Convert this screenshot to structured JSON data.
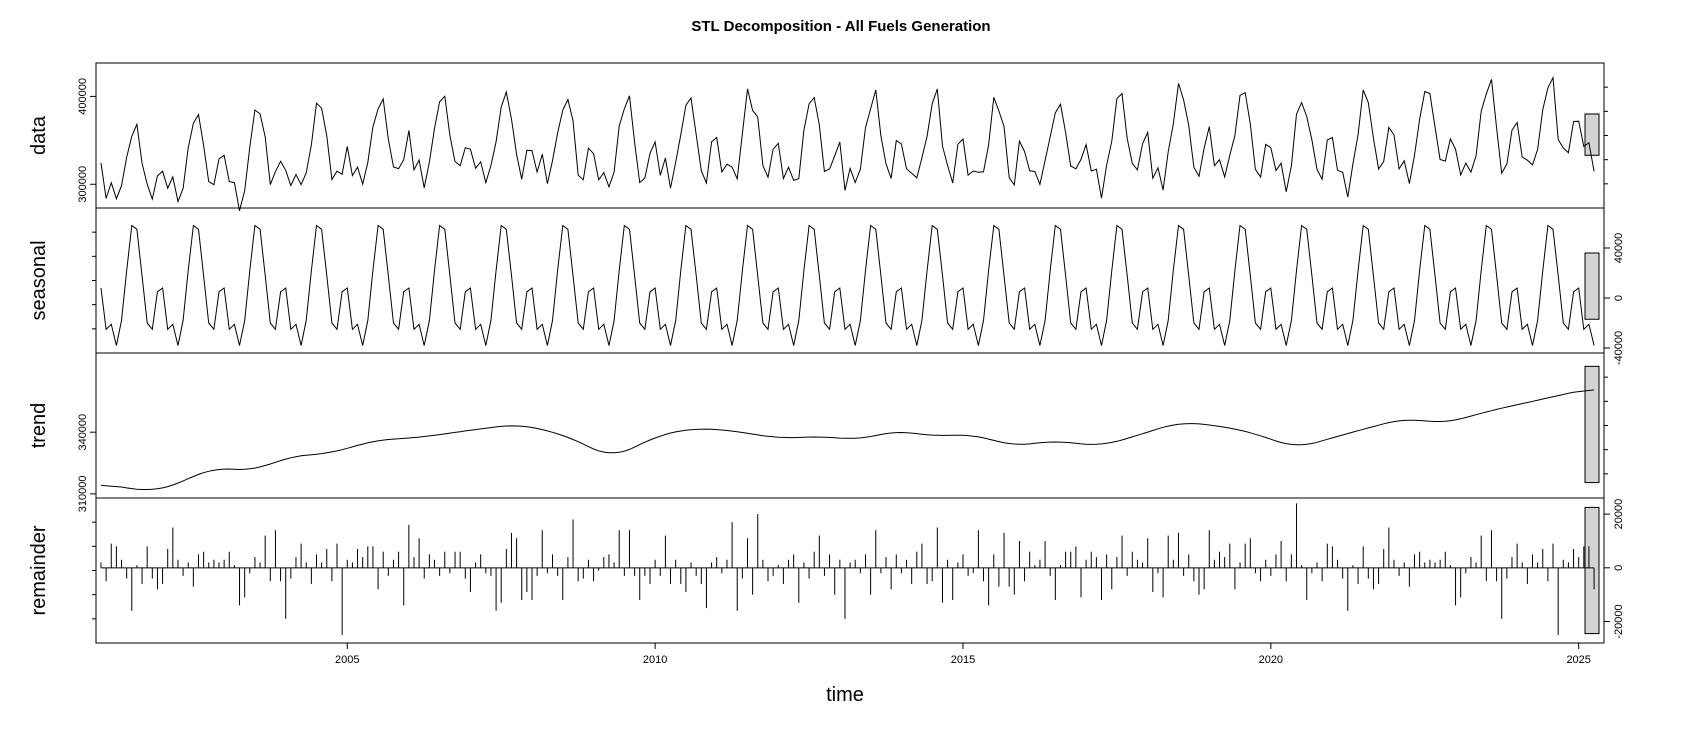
{
  "chart_data": {
    "type": "line",
    "title": "STL Decomposition - All Fuels Generation",
    "xlabel": "time",
    "x_ticks": [
      2005,
      2010,
      2015,
      2020,
      2025
    ],
    "x_range": [
      2001,
      2025.33
    ],
    "panels": [
      {
        "name": "data",
        "ylabel": "data",
        "y_ticks": [
          300000,
          400000
        ],
        "y_tick_labels": [
          "300000",
          "400000"
        ],
        "axis_side": "left",
        "ylim": [
          273000,
          438000
        ],
        "scale_bar": [
          333000,
          380000
        ]
      },
      {
        "name": "seasonal",
        "ylabel": "seasonal",
        "y_ticks": [
          -40000,
          0,
          40000
        ],
        "y_tick_labels": [
          "-40000",
          "0",
          "40000"
        ],
        "axis_side": "right",
        "ylim": [
          -44000,
          72000
        ],
        "scale_bar": [
          -17000,
          36000
        ]
      },
      {
        "name": "trend",
        "ylabel": "trend",
        "y_ticks": [
          310000,
          340000
        ],
        "y_tick_labels": [
          "310000",
          "340000"
        ],
        "axis_side": "left",
        "ylim": [
          308000,
          378500
        ],
        "scale_bar": [
          315500,
          372000
        ]
      },
      {
        "name": "remainder",
        "ylabel": "remainder",
        "y_ticks": [
          -20000,
          0,
          20000
        ],
        "y_tick_labels": [
          "-20000",
          "0",
          "20000"
        ],
        "axis_side": "right",
        "ylim": [
          -28000,
          26000
        ],
        "scale_bar": [
          -24500,
          22500
        ]
      }
    ],
    "seasonal_pattern": [
      8000,
      -25000,
      -21000,
      -38000,
      -18000,
      22000,
      58000,
      55000,
      18000,
      -20000,
      -25000,
      5000
    ],
    "trend_knots": [
      [
        2001.0,
        315000
      ],
      [
        2001.8,
        311000
      ],
      [
        2002.2,
        314000
      ],
      [
        2002.8,
        323000
      ],
      [
        2003.5,
        321000
      ],
      [
        2004.0,
        328000
      ],
      [
        2004.8,
        330000
      ],
      [
        2005.4,
        336000
      ],
      [
        2006.2,
        337500
      ],
      [
        2007.0,
        341000
      ],
      [
        2007.8,
        344000
      ],
      [
        2008.6,
        338000
      ],
      [
        2009.3,
        327000
      ],
      [
        2010.0,
        338000
      ],
      [
        2010.6,
        342000
      ],
      [
        2011.2,
        341000
      ],
      [
        2012.0,
        337000
      ],
      [
        2012.8,
        338000
      ],
      [
        2013.3,
        336000
      ],
      [
        2013.9,
        341000
      ],
      [
        2014.5,
        338000
      ],
      [
        2015.2,
        339000
      ],
      [
        2015.8,
        333000
      ],
      [
        2016.5,
        336000
      ],
      [
        2017.2,
        333000
      ],
      [
        2017.8,
        338000
      ],
      [
        2018.5,
        345000
      ],
      [
        2019.2,
        343000
      ],
      [
        2019.8,
        339000
      ],
      [
        2020.4,
        332000
      ],
      [
        2021.2,
        339000
      ],
      [
        2022.2,
        347000
      ],
      [
        2022.8,
        344000
      ],
      [
        2023.5,
        350000
      ],
      [
        2024.4,
        356000
      ],
      [
        2025.3,
        362000
      ]
    ],
    "remainder_values": [
      2000,
      -5000,
      9000,
      8000,
      3000,
      -4000,
      -16000,
      1000,
      -6000,
      8000,
      -4000,
      -8000,
      -6000,
      7000,
      15000,
      3000,
      -3000,
      2000,
      -7000,
      5000,
      6000,
      2000,
      3000,
      2000,
      3000,
      6000,
      1000,
      -14000,
      -11000,
      -2000,
      4000,
      2000,
      12000,
      -5000,
      14000,
      -5000,
      -19000,
      -4000,
      4000,
      9000,
      2000,
      -6000,
      5000,
      2000,
      7000,
      -5000,
      9000,
      -25000,
      3000,
      2000,
      7000,
      4000,
      8000,
      8000,
      -8000,
      6000,
      -3000,
      3000,
      6000,
      -14000,
      16000,
      4000,
      11000,
      -4000,
      5000,
      3000,
      -3000,
      6000,
      -2000,
      6000,
      6000,
      -4000,
      -9000,
      2000,
      5000,
      -2000,
      -3000,
      -16000,
      -13000,
      7000,
      13000,
      11000,
      -12000,
      -9000,
      -12000,
      -3000,
      14000,
      -2000,
      5000,
      -3000,
      -12000,
      4000,
      18000,
      -5000,
      -4000,
      3000,
      -5000,
      -1000,
      4000,
      5000,
      2000,
      14000,
      -3000,
      14000,
      -3000,
      -12000,
      -3000,
      -6000,
      3000,
      -3000,
      12000,
      -6000,
      3000,
      -6000,
      -9000,
      2000,
      -3000,
      -6000,
      -15000,
      2000,
      4000,
      -2000,
      3000,
      17000,
      -16000,
      -4000,
      11000,
      -10000,
      20000,
      3000,
      -5000,
      -3000,
      1000,
      -6000,
      3000,
      5000,
      -13000,
      2000,
      -4000,
      6000,
      12000,
      -3000,
      5000,
      -10000,
      3000,
      -19000,
      2000,
      3000,
      -2000,
      5000,
      -10000,
      14000,
      -2000,
      4000,
      -8000,
      5000,
      -2000,
      3000,
      -6000,
      6000,
      9000,
      -6000,
      -5000,
      15000,
      -13000,
      3000,
      -12000,
      2000,
      5000,
      -3000,
      -2000,
      14000,
      -5000,
      -14000,
      5000,
      -7000,
      13000,
      -7000,
      -10000,
      10000,
      -5000,
      6000,
      1000,
      3000,
      10000,
      -3000,
      -12000,
      1000,
      6000,
      6000,
      8000,
      -11000,
      3000,
      6000,
      4000,
      -12000,
      5000,
      -8000,
      4000,
      12000,
      -3000,
      6000,
      3000,
      2000,
      11000,
      -9000,
      -2000,
      -11000,
      12000,
      3000,
      13000,
      -3000,
      5000,
      -5000,
      -10000,
      -8000,
      14000,
      3000,
      6000,
      4000,
      9000,
      -8000,
      2000,
      9000,
      11000,
      -2000,
      -5000,
      3000,
      -3000,
      5000,
      10000,
      -5000,
      5000,
      24000,
      1000,
      -12000,
      -2000
    ]
  }
}
